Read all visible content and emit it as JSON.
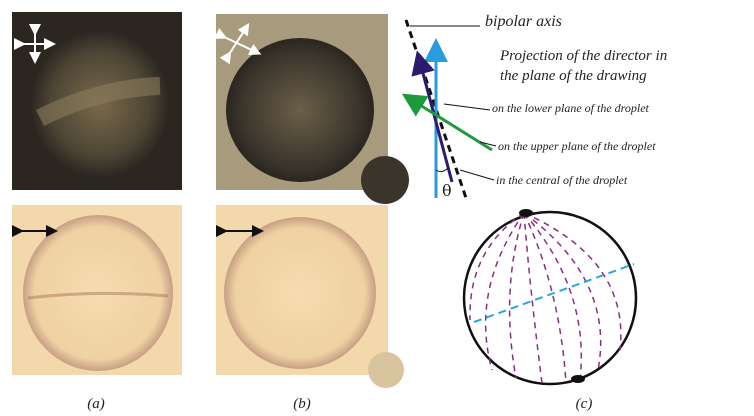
{
  "figure": {
    "panel_labels": [
      "(a)",
      "(b)",
      "(c)"
    ],
    "annotations": {
      "bipolar_axis": "bipolar axis",
      "projection": [
        "Projection of the director in",
        "the plane of the drawing"
      ],
      "lower": "on the lower plane of the droplet",
      "upper": "on the upper plane of the droplet",
      "central": "in the central of the droplet",
      "angle": "θ"
    }
  }
}
